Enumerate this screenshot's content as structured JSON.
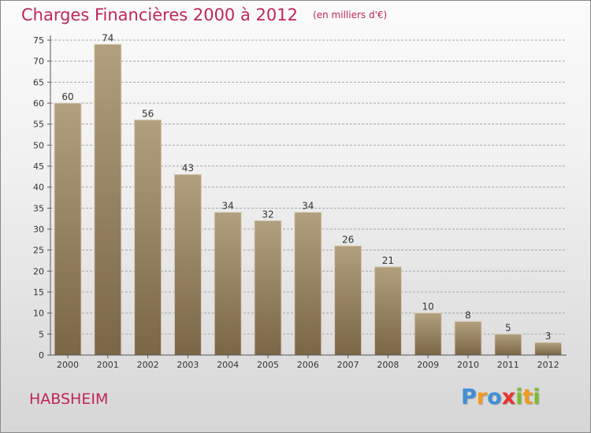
{
  "title": "Charges Financières 2000 à 2012",
  "subtitle": "(en milliers d'€)",
  "place": "HABSHEIM",
  "brand": {
    "text": "Proxiti",
    "letters": [
      {
        "ch": "P",
        "color": "#3f8fd8"
      },
      {
        "ch": "r",
        "color": "#f29a1f"
      },
      {
        "ch": "o",
        "color": "#3f8fd8"
      },
      {
        "ch": "x",
        "color": "#e8322e"
      },
      {
        "ch": "i",
        "color": "#7dbb2f"
      },
      {
        "ch": "t",
        "color": "#f29a1f"
      },
      {
        "ch": "i",
        "color": "#7dbb2f"
      }
    ]
  },
  "colors": {
    "title": "#c0245c",
    "bar_top": "#b29f7e",
    "bar_bottom": "#7a6647",
    "grid": "#a8a8a8",
    "axis": "#555555"
  },
  "chart_data": {
    "type": "bar",
    "categories": [
      "2000",
      "2001",
      "2002",
      "2003",
      "2004",
      "2005",
      "2006",
      "2007",
      "2008",
      "2009",
      "2010",
      "2011",
      "2012"
    ],
    "values": [
      60,
      74,
      56,
      43,
      34,
      32,
      34,
      26,
      21,
      10,
      8,
      5,
      3
    ],
    "ylim": [
      0,
      75
    ],
    "yticks": [
      0,
      5,
      10,
      15,
      20,
      25,
      30,
      35,
      40,
      45,
      50,
      55,
      60,
      65,
      70,
      75
    ],
    "grid": true,
    "data_labels": true,
    "xlabel": "",
    "ylabel": ""
  }
}
